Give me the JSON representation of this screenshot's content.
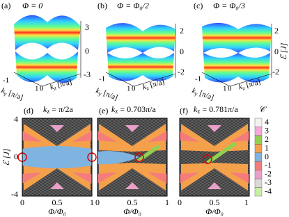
{
  "panels_top": [
    {
      "label": "(a)",
      "title": "Φ = 0",
      "z_ticks": [
        "3",
        "0",
        "-3"
      ],
      "ky_ticks": [
        "-1",
        "1"
      ],
      "kz_ticks": [
        "0"
      ],
      "ky_label": {
        "k": "k",
        "sub": "y",
        "unit": " [π/a]"
      },
      "kz_label": {
        "k": "k",
        "sub": "z",
        "unit": " [π/a]"
      }
    },
    {
      "label": "(b)",
      "title": "Φ = Φ₀/2",
      "z_ticks": [
        "2",
        "0",
        "-2"
      ],
      "ky_ticks": [
        "-1",
        "1"
      ],
      "kz_ticks": [
        "0"
      ],
      "ky_label": {
        "k": "k",
        "sub": "y",
        "unit": " [π/a]"
      },
      "kz_label": {
        "k": "k",
        "sub": "z",
        "unit": " [π/a]"
      }
    },
    {
      "label": "(c)",
      "title": "Φ = Φ₀/3",
      "z_ticks": [
        "2",
        "0",
        "-2"
      ],
      "ky_ticks": [
        "-1",
        "1"
      ],
      "kz_ticks": [
        "0"
      ],
      "ky_label": {
        "k": "k",
        "sub": "y",
        "unit": " [π/a]"
      },
      "kz_label": {
        "k": "k",
        "sub": "z",
        "unit": " [π/a]"
      },
      "z_label": "ℰ [J]"
    }
  ],
  "panels_bottom": [
    {
      "label": "(d)",
      "title": {
        "k": "k",
        "sub": "z",
        "rest": " = π/2a"
      },
      "x_ticks": [
        "0",
        "0.5",
        "1"
      ],
      "x_label": "Φ/Φ₀"
    },
    {
      "label": "(e)",
      "title": {
        "k": "k",
        "sub": "z",
        "rest": " = 0.703π/a"
      },
      "x_ticks": [
        "0",
        "0.5",
        "1"
      ],
      "x_label": "Φ/Φ₀"
    },
    {
      "label": "(f)",
      "title": {
        "k": "k",
        "sub": "z",
        "rest": " = 0.781π/a"
      },
      "x_ticks": [
        "0",
        "0.5",
        "1"
      ],
      "x_label": "Φ/Φ₀"
    }
  ],
  "y_ticks": [
    "4",
    "0",
    "-4"
  ],
  "y_label": "ℰ [J]",
  "colorbar": {
    "title": "𝒞",
    "levels": [
      {
        "label": "4",
        "color": "#f2f2f2"
      },
      {
        "label": "3",
        "color": "#f7a8d8"
      },
      {
        "label": "2",
        "color": "#92d050"
      },
      {
        "label": "1",
        "color": "#f5a04a"
      },
      {
        "label": "0",
        "color": "#7fb3e0"
      },
      {
        "label": "-1",
        "color": "#f47c7c"
      },
      {
        "label": "-2",
        "color": "#e8a0c8"
      },
      {
        "label": "-3",
        "color": "#d9d9d9"
      },
      {
        "label": "-4",
        "color": "#c9f0a0"
      }
    ]
  }
}
